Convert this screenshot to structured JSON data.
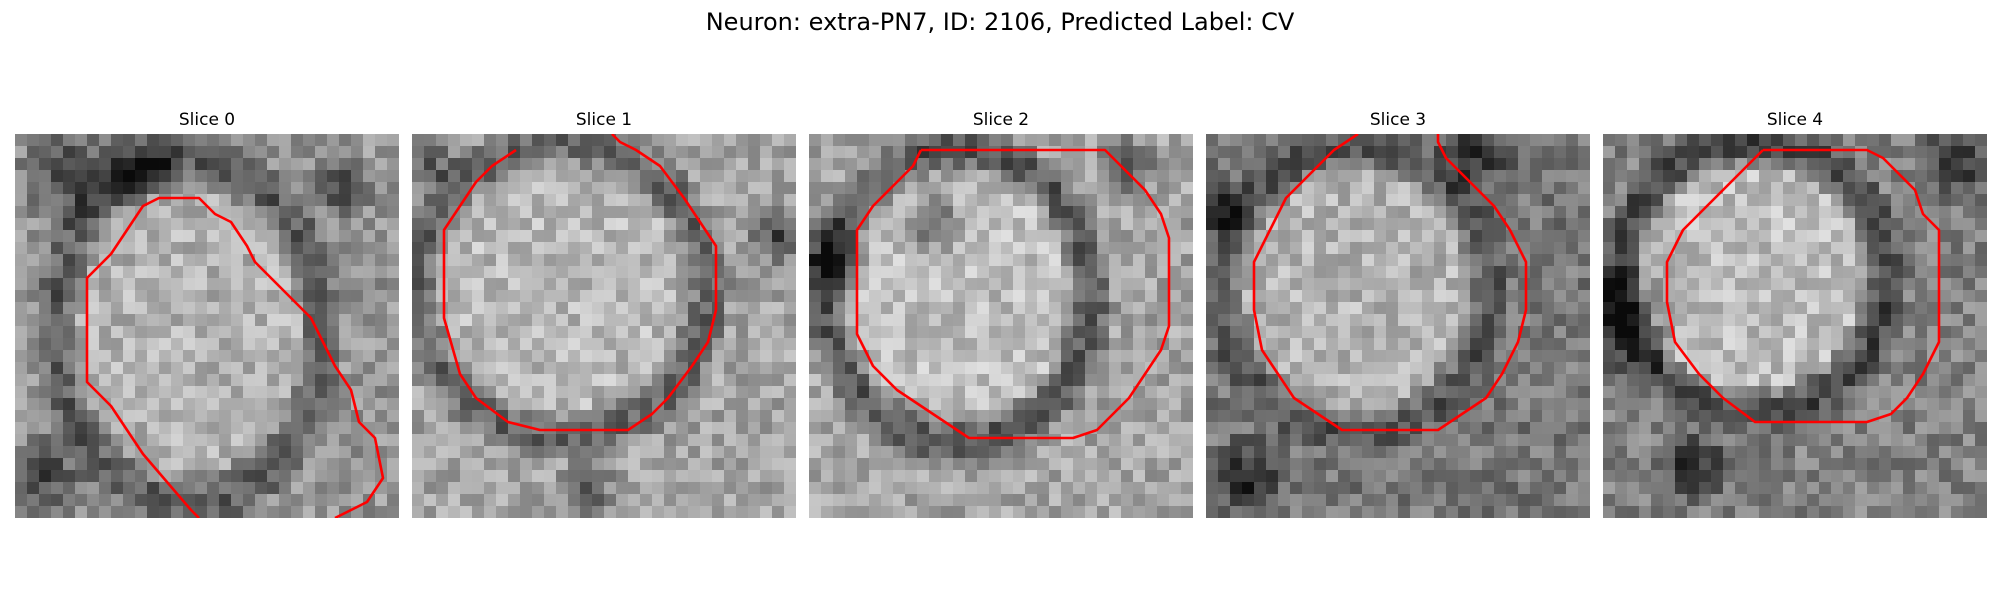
{
  "figure": {
    "title": "Neuron: extra-PN7, ID: 2106, Predicted Label: CV",
    "contour_color": "#ff0000",
    "colormap": "grayscale",
    "panels": [
      {
        "title": "Slice 0"
      },
      {
        "title": "Slice 1"
      },
      {
        "title": "Slice 2"
      },
      {
        "title": "Slice 3"
      },
      {
        "title": "Slice 4"
      }
    ]
  }
}
